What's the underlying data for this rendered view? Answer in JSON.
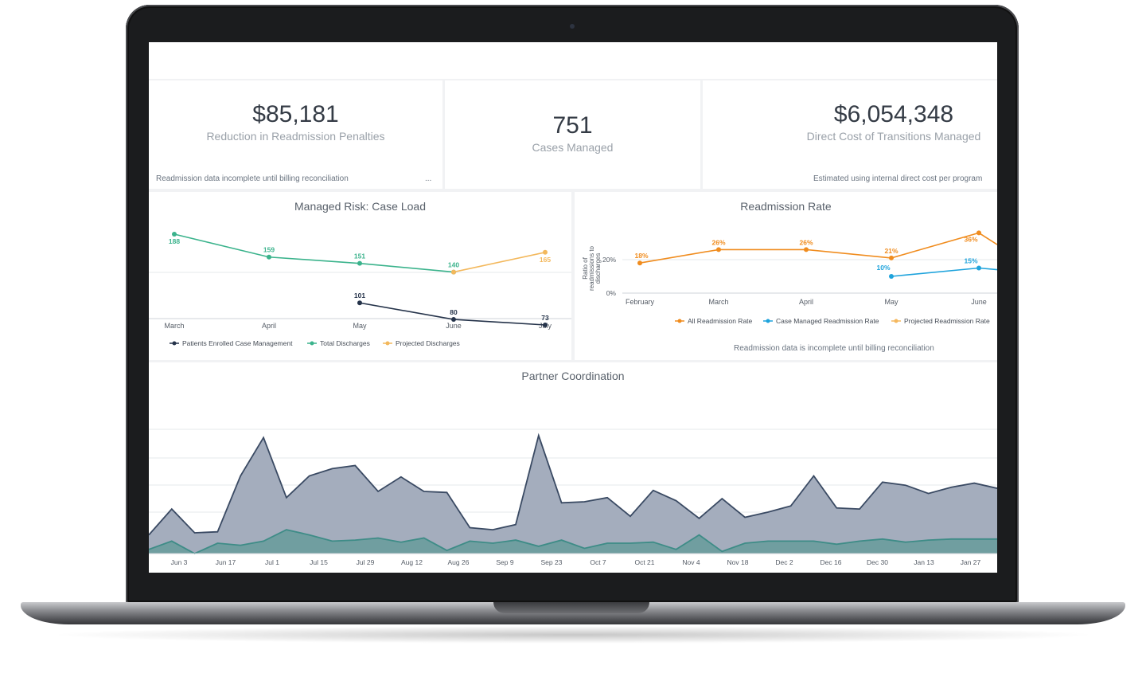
{
  "kpis": {
    "penalties": {
      "value": "$85,181",
      "label": "Reduction in Readmission Penalties",
      "note": "Readmission data incomplete until billing reconciliation",
      "more": "..."
    },
    "cases": {
      "value": "751",
      "label": "Cases Managed"
    },
    "direct_cost": {
      "value": "$6,054,348",
      "label": "Direct Cost of Transitions Managed",
      "note": "Estimated using internal direct cost per program"
    }
  },
  "panels": {
    "case_load": {
      "title": "Managed Risk: Case Load"
    },
    "readmission": {
      "title": "Readmission Rate",
      "note": "Readmission data is incomplete until billing reconciliation"
    },
    "partner": {
      "title": "Partner Coordination"
    }
  },
  "chart_data": [
    {
      "type": "line",
      "title": "Managed Risk: Case Load",
      "categories": [
        "March",
        "April",
        "May",
        "June",
        "July"
      ],
      "legend_position": "bottom",
      "series": [
        {
          "name": "Patients Enrolled Case Management",
          "color": "#25334a",
          "values": [
            null,
            null,
            101,
            80,
            73
          ],
          "labels": [
            "",
            "",
            "101",
            "80",
            "73"
          ]
        },
        {
          "name": "Total Discharges",
          "color": "#3bb38c",
          "values": [
            188,
            159,
            151,
            140,
            null
          ],
          "labels": [
            "188",
            "159",
            "151",
            "140",
            ""
          ]
        },
        {
          "name": "Projected Discharges",
          "color": "#f3b85c",
          "values": [
            null,
            null,
            null,
            140,
            165
          ],
          "labels": [
            "",
            "",
            "",
            "",
            "165"
          ]
        }
      ]
    },
    {
      "type": "line",
      "title": "Readmission Rate",
      "ylabel": "Ratio of readmissions to discharges",
      "y_ticks": [
        "0%",
        "20%"
      ],
      "ylim": [
        0,
        40
      ],
      "categories": [
        "February",
        "March",
        "April",
        "May",
        "June"
      ],
      "legend_position": "bottom",
      "series": [
        {
          "name": "All Readmission Rate",
          "color": "#f08c1e",
          "values": [
            18,
            26,
            26,
            21,
            36
          ],
          "labels": [
            "18%",
            "26%",
            "26%",
            "21%",
            "36%"
          ]
        },
        {
          "name": "Case Managed Readmission Rate",
          "color": "#1ea3dc",
          "values": [
            null,
            null,
            null,
            10,
            15
          ],
          "labels": [
            "",
            "",
            "",
            "10%",
            "15%"
          ]
        },
        {
          "name": "Projected Readmission Rate",
          "color": "#f5b85e",
          "values": [
            null,
            null,
            null,
            null,
            36
          ],
          "labels": [
            "",
            "",
            "",
            "",
            ""
          ]
        }
      ]
    },
    {
      "type": "area",
      "title": "Partner Coordination",
      "grid": true,
      "x_ticks": [
        "Jun 3",
        "Jun 17",
        "Jul 1",
        "Jul 15",
        "Jul 29",
        "Aug 12",
        "Aug 26",
        "Sep 9",
        "Sep 23",
        "Oct 7",
        "Oct 21",
        "Nov 4",
        "Nov 18",
        "Dec 2",
        "Dec 16",
        "Dec 30",
        "Jan 13",
        "Jan 27"
      ],
      "series": [
        {
          "color": "#a4adbd",
          "stroke": "#3a4a63",
          "values": [
            18,
            43,
            20,
            21,
            75,
            112,
            54,
            75,
            82,
            85,
            60,
            74,
            60,
            59,
            25,
            23,
            28,
            114,
            49,
            50,
            54,
            36,
            61,
            51,
            34,
            53,
            35,
            40,
            46,
            75,
            44,
            43,
            69,
            66,
            58,
            64,
            68,
            63
          ]
        },
        {
          "color": "#6e9d9e",
          "stroke": "#3e8c87",
          "values": [
            4,
            12,
            0,
            10,
            8,
            12,
            23,
            18,
            12,
            13,
            15,
            11,
            15,
            3,
            12,
            10,
            13,
            7,
            13,
            5,
            10,
            10,
            11,
            4,
            18,
            2,
            10,
            12,
            12,
            12,
            9,
            12,
            14,
            11,
            13,
            14,
            14,
            14
          ]
        }
      ]
    }
  ]
}
